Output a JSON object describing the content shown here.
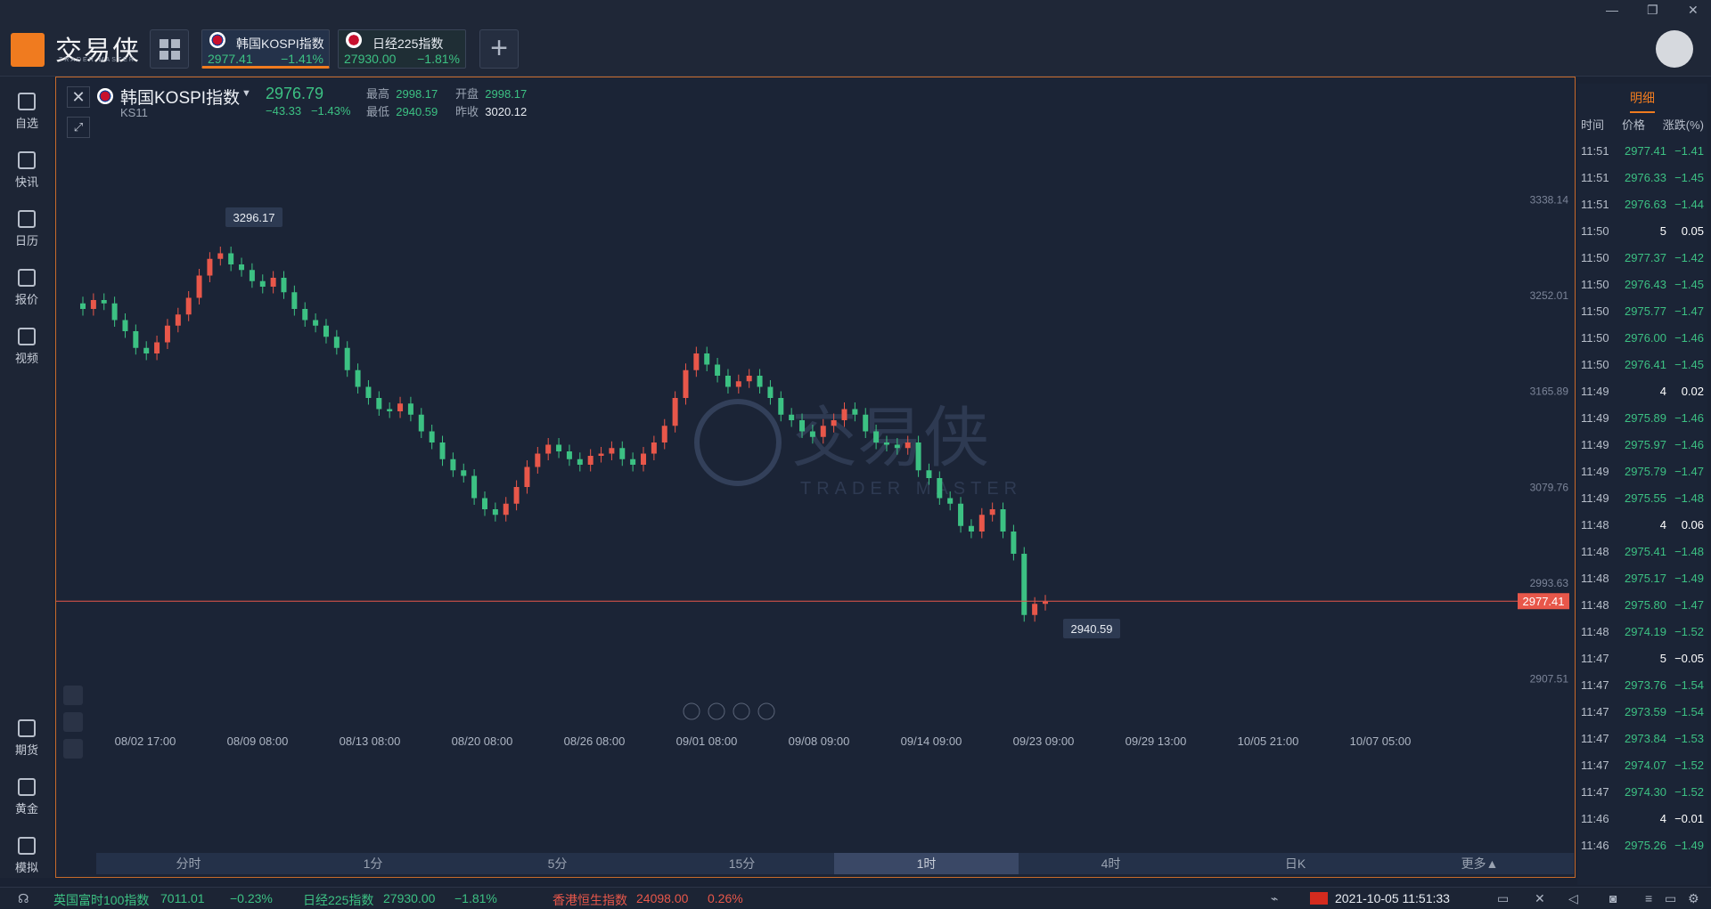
{
  "app": {
    "brand": "交易侠",
    "brand_sub": "TRADER MASTER"
  },
  "tabs": [
    {
      "name": "韩国KOSPI指数",
      "price": "2977.41",
      "change": "−1.41%",
      "active": true
    },
    {
      "name": "日经225指数",
      "price": "27930.00",
      "change": "−1.81%",
      "active": false
    }
  ],
  "sidebar": {
    "top": [
      "自选",
      "快讯",
      "日历",
      "报价",
      "视频"
    ],
    "bottom": [
      "期货",
      "黄金",
      "模拟"
    ]
  },
  "symbol": {
    "name": "韩国KOSPI指数",
    "code": "KS11",
    "price": "2976.79",
    "change": "−43.33",
    "change_pct": "−1.43%",
    "high_label": "最高",
    "high": "2998.17",
    "open_label": "开盘",
    "open": "2998.17",
    "low_label": "最低",
    "low": "2940.59",
    "prev_label": "昨收",
    "prev": "3020.12"
  },
  "chart_data": {
    "type": "candlestick",
    "price_axis": [
      "3338.14",
      "3252.01",
      "3165.89",
      "3079.76",
      "2993.63",
      "2907.51"
    ],
    "ylim": [
      2880,
      3360
    ],
    "time_axis": [
      "08/02 17:00",
      "08/09 08:00",
      "08/13 08:00",
      "08/20 08:00",
      "08/26 08:00",
      "09/01 08:00",
      "09/08 09:00",
      "09/14 09:00",
      "09/23 09:00",
      "09/29 13:00",
      "10/05 21:00",
      "10/07 05:00"
    ],
    "max_label": "3296.17",
    "min_label": "2940.59",
    "last_price_label": "2977.41",
    "last_price": 2977.41,
    "closes": [
      3240,
      3248,
      3245,
      3230,
      3220,
      3205,
      3200,
      3210,
      3225,
      3235,
      3250,
      3270,
      3285,
      3290,
      3280,
      3275,
      3265,
      3260,
      3268,
      3255,
      3240,
      3230,
      3225,
      3215,
      3205,
      3185,
      3170,
      3160,
      3150,
      3148,
      3155,
      3145,
      3130,
      3120,
      3105,
      3095,
      3090,
      3070,
      3060,
      3055,
      3065,
      3080,
      3098,
      3110,
      3118,
      3112,
      3105,
      3100,
      3108,
      3110,
      3115,
      3105,
      3100,
      3110,
      3120,
      3135,
      3160,
      3185,
      3200,
      3190,
      3180,
      3170,
      3175,
      3180,
      3170,
      3160,
      3145,
      3140,
      3130,
      3125,
      3135,
      3140,
      3150,
      3145,
      3130,
      3120,
      3118,
      3115,
      3120,
      3095,
      3088,
      3070,
      3065,
      3045,
      3040,
      3055,
      3060,
      3040,
      3020,
      2965,
      2975,
      2977
    ]
  },
  "detail": {
    "tab": "明细",
    "headers": [
      "时间",
      "价格",
      "涨跌(%)"
    ],
    "rows": [
      {
        "t": "11:51",
        "p": "2977.41",
        "c": "−1.41",
        "w": false
      },
      {
        "t": "11:51",
        "p": "2976.33",
        "c": "−1.45",
        "w": false
      },
      {
        "t": "11:51",
        "p": "2976.63",
        "c": "−1.44",
        "w": false
      },
      {
        "t": "11:50",
        "p": "5",
        "c": "0.05",
        "w": true
      },
      {
        "t": "11:50",
        "p": "2977.37",
        "c": "−1.42",
        "w": false
      },
      {
        "t": "11:50",
        "p": "2976.43",
        "c": "−1.45",
        "w": false
      },
      {
        "t": "11:50",
        "p": "2975.77",
        "c": "−1.47",
        "w": false
      },
      {
        "t": "11:50",
        "p": "2976.00",
        "c": "−1.46",
        "w": false
      },
      {
        "t": "11:50",
        "p": "2976.41",
        "c": "−1.45",
        "w": false
      },
      {
        "t": "11:49",
        "p": "4",
        "c": "0.02",
        "w": true
      },
      {
        "t": "11:49",
        "p": "2975.89",
        "c": "−1.46",
        "w": false
      },
      {
        "t": "11:49",
        "p": "2975.97",
        "c": "−1.46",
        "w": false
      },
      {
        "t": "11:49",
        "p": "2975.79",
        "c": "−1.47",
        "w": false
      },
      {
        "t": "11:49",
        "p": "2975.55",
        "c": "−1.48",
        "w": false
      },
      {
        "t": "11:48",
        "p": "4",
        "c": "0.06",
        "w": true
      },
      {
        "t": "11:48",
        "p": "2975.41",
        "c": "−1.48",
        "w": false
      },
      {
        "t": "11:48",
        "p": "2975.17",
        "c": "−1.49",
        "w": false
      },
      {
        "t": "11:48",
        "p": "2975.80",
        "c": "−1.47",
        "w": false
      },
      {
        "t": "11:48",
        "p": "2974.19",
        "c": "−1.52",
        "w": false
      },
      {
        "t": "11:47",
        "p": "5",
        "c": "−0.05",
        "w": true
      },
      {
        "t": "11:47",
        "p": "2973.76",
        "c": "−1.54",
        "w": false
      },
      {
        "t": "11:47",
        "p": "2973.59",
        "c": "−1.54",
        "w": false
      },
      {
        "t": "11:47",
        "p": "2973.84",
        "c": "−1.53",
        "w": false
      },
      {
        "t": "11:47",
        "p": "2974.07",
        "c": "−1.52",
        "w": false
      },
      {
        "t": "11:47",
        "p": "2974.30",
        "c": "−1.52",
        "w": false
      },
      {
        "t": "11:46",
        "p": "4",
        "c": "−0.01",
        "w": true
      },
      {
        "t": "11:46",
        "p": "2975.26",
        "c": "−1.49",
        "w": false
      }
    ]
  },
  "timeframes": [
    "分时",
    "1分",
    "5分",
    "15分",
    "1时",
    "4时",
    "日K",
    "更多▲"
  ],
  "timeframe_selected": "1时",
  "statusbar": {
    "t1_name": "英国富时100指数",
    "t1_price": "7011.01",
    "t1_chg": "−0.23%",
    "t2_name": "日经225指数",
    "t2_price": "27930.00",
    "t2_chg": "−1.81%",
    "t3_name": "香港恒生指数",
    "t3_price": "24098.00",
    "t3_chg": "0.26%",
    "datetime": "2021-10-05 11:51:33"
  },
  "watermark": {
    "brand": "交易侠",
    "sub": "TRADER MASTER"
  }
}
